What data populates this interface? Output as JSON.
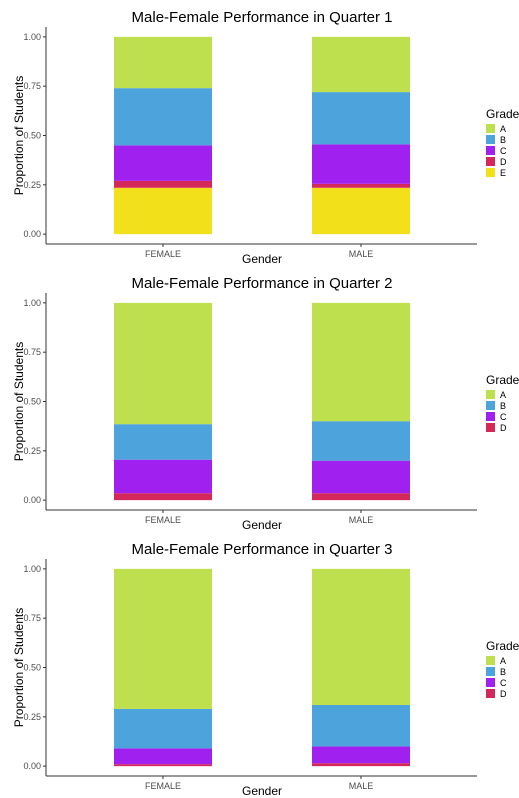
{
  "chart_data": [
    {
      "type": "bar",
      "stacked": true,
      "title": "Male-Female Performance in Quarter 1",
      "xlabel": "Gender",
      "ylabel": "Proportion of Students",
      "ylim": [
        0,
        1
      ],
      "yticks": [
        "0.00",
        "0.25",
        "0.50",
        "0.75",
        "1.00"
      ],
      "categories": [
        "FEMALE",
        "MALE"
      ],
      "legend_title": "Grades",
      "legend_position": "right",
      "series": [
        {
          "name": "A",
          "color": "#bfe04e",
          "values": [
            0.26,
            0.28
          ]
        },
        {
          "name": "B",
          "color": "#4da3dc",
          "values": [
            0.29,
            0.265
          ]
        },
        {
          "name": "C",
          "color": "#a020f0",
          "values": [
            0.18,
            0.2
          ]
        },
        {
          "name": "D",
          "color": "#d5285a",
          "values": [
            0.035,
            0.02
          ]
        },
        {
          "name": "E",
          "color": "#f2e01a",
          "values": [
            0.235,
            0.235
          ]
        }
      ]
    },
    {
      "type": "bar",
      "stacked": true,
      "title": "Male-Female Performance in Quarter 2",
      "xlabel": "Gender",
      "ylabel": "Proportion of Students",
      "ylim": [
        0,
        1
      ],
      "yticks": [
        "0.00",
        "0.25",
        "0.50",
        "0.75",
        "1.00"
      ],
      "categories": [
        "FEMALE",
        "MALE"
      ],
      "legend_title": "Grades",
      "legend_position": "right",
      "series": [
        {
          "name": "A",
          "color": "#bfe04e",
          "values": [
            0.615,
            0.6
          ]
        },
        {
          "name": "B",
          "color": "#4da3dc",
          "values": [
            0.18,
            0.2
          ]
        },
        {
          "name": "C",
          "color": "#a020f0",
          "values": [
            0.17,
            0.165
          ]
        },
        {
          "name": "D",
          "color": "#d5285a",
          "values": [
            0.035,
            0.035
          ]
        }
      ]
    },
    {
      "type": "bar",
      "stacked": true,
      "title": "Male-Female Performance in Quarter 3",
      "xlabel": "Gender",
      "ylabel": "Proportion of Students",
      "ylim": [
        0,
        1
      ],
      "yticks": [
        "0.00",
        "0.25",
        "0.50",
        "0.75",
        "1.00"
      ],
      "categories": [
        "FEMALE",
        "MALE"
      ],
      "legend_title": "Grades",
      "legend_position": "right",
      "series": [
        {
          "name": "A",
          "color": "#bfe04e",
          "values": [
            0.71,
            0.69
          ]
        },
        {
          "name": "B",
          "color": "#4da3dc",
          "values": [
            0.2,
            0.21
          ]
        },
        {
          "name": "C",
          "color": "#a020f0",
          "values": [
            0.08,
            0.085
          ]
        },
        {
          "name": "D",
          "color": "#d5285a",
          "values": [
            0.01,
            0.015
          ]
        }
      ]
    }
  ]
}
